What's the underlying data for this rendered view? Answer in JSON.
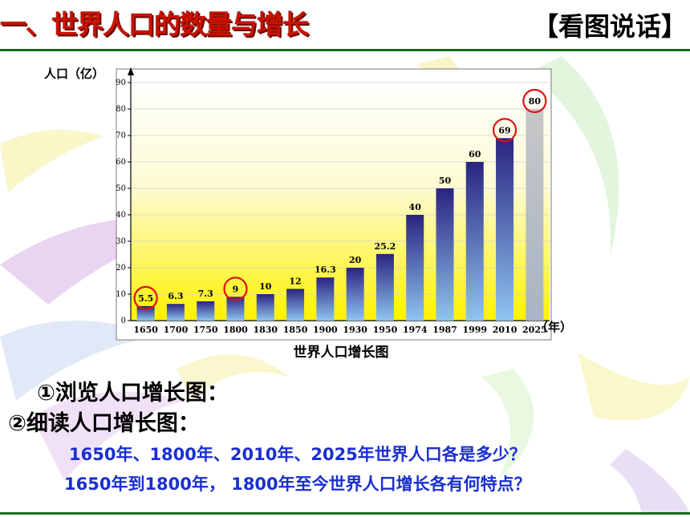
{
  "header": {
    "title": "一、世界人口的数量与增长",
    "tag": "【看图说话】"
  },
  "chart_data": {
    "type": "bar",
    "title": "世界人口增长图",
    "ylabel": "人口（亿）",
    "xlabel": "（年）",
    "ylim": [
      0,
      90
    ],
    "yticks": [
      "0",
      "10",
      "20",
      "30",
      "40",
      "50",
      "60",
      "70",
      "80",
      "90"
    ],
    "categories": [
      "1650",
      "1700",
      "1750",
      "1800",
      "1830",
      "1850",
      "1900",
      "1930",
      "1950",
      "1974",
      "1987",
      "1999",
      "2010",
      "2025"
    ],
    "values": [
      5.5,
      6.3,
      7.3,
      9,
      10,
      12,
      16.3,
      20,
      25.2,
      40,
      50,
      60,
      69,
      80
    ],
    "data_labels": [
      "5.5",
      "6.3",
      "7.3",
      "9",
      "10",
      "12",
      "16.3",
      "20",
      "25.2",
      "40",
      "50",
      "60",
      "69",
      "80"
    ],
    "highlighted": [
      "1650",
      "1800",
      "2010",
      "2025"
    ],
    "colors": {
      "bar_top": "#2a2480",
      "bar_bottom": "#8fc4f0",
      "forecast_top": "#c7c7c7",
      "forecast_bottom": "#a8b4c4",
      "circle": "#e01010"
    }
  },
  "questions": {
    "q1": "①浏览人口增长图：",
    "q2": "②细读人口增长图：",
    "q3": "1650年、1800年、2010年、2025年世界人口各是多少？",
    "q4": "1650年到1800年， 1800年至今世界人口增长各有何特点？"
  }
}
